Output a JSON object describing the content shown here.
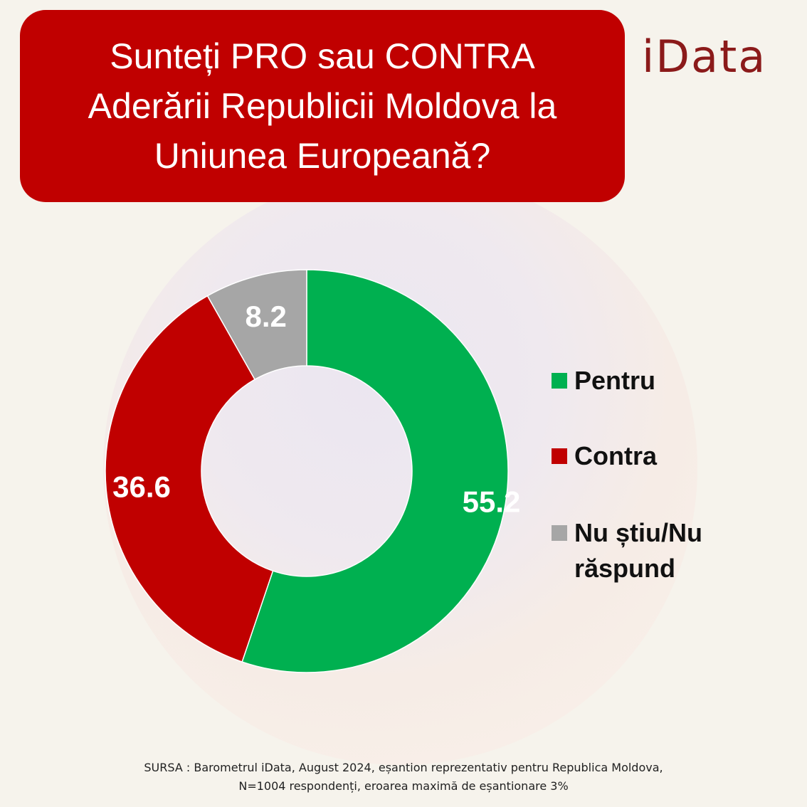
{
  "title": {
    "line1": "Sunteți PRO sau CONTRA",
    "line2": "Aderării Republicii Moldova la",
    "line3": "Uniunea Europeană?"
  },
  "logo": "iData",
  "chart_data": {
    "type": "pie",
    "variant": "donut",
    "title": "Sunteți PRO sau CONTRA Aderării Republicii Moldova la Uniunea Europeană?",
    "categories": [
      "Pentru",
      "Contra",
      "Nu știu/Nu răspund"
    ],
    "values": [
      55.2,
      36.6,
      8.2
    ],
    "value_labels": [
      "55.2",
      "36.6",
      "8.2"
    ],
    "colors": [
      "#00b050",
      "#c00000",
      "#a6a6a6"
    ],
    "legend_position": "right",
    "legend": [
      {
        "label_line1": "Pentru",
        "label_line2": ""
      },
      {
        "label_line1": "Contra",
        "label_line2": ""
      },
      {
        "label_line1": "Nu știu/Nu",
        "label_line2": "răspund"
      }
    ]
  },
  "source": {
    "line1": "SURSA : Barometrul iData, August 2024, eșantion reprezentativ pentru Republica Moldova,",
    "line2": "N=1004 respondenți, eroarea maximă de eșantionare 3%"
  }
}
